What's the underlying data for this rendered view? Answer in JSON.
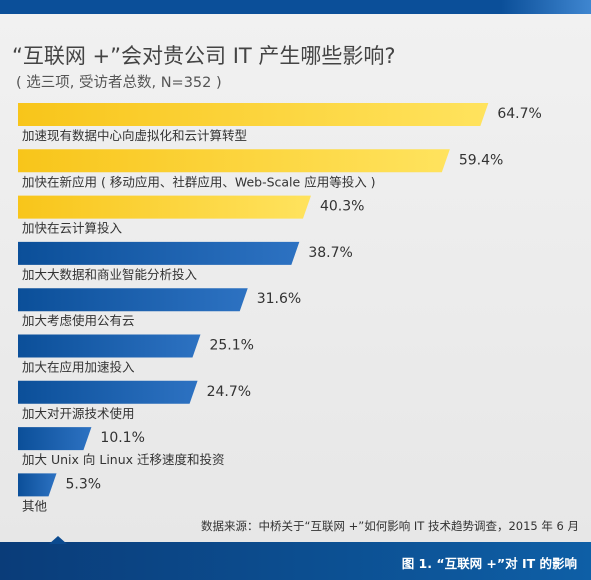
{
  "chart_data": {
    "type": "bar",
    "orientation": "horizontal",
    "title": "“互联网 +”会对贵公司 IT 产生哪些影响?",
    "subtitle": "( 选三项, 受访者总数, N=352 )",
    "categories": [
      "加速现有数据中心向虚拟化和云计算转型",
      "加快在新应用 ( 移动应用、社群应用、Web-Scale 应用等投入 )",
      "加快在云计算投入",
      "加大大数据和商业智能分析投入",
      "加大考虑使用公有云",
      "加大在应用加速投入",
      "加大对开源技术使用",
      "加大 Unix 向 Linux 迁移速度和投资",
      "其他"
    ],
    "values": [
      64.7,
      59.4,
      40.3,
      38.7,
      31.6,
      25.1,
      24.7,
      10.1,
      5.3
    ],
    "value_labels": [
      "64.7%",
      "59.4%",
      "40.3%",
      "38.7%",
      "31.6%",
      "25.1%",
      "24.7%",
      "10.1%",
      "5.3%"
    ],
    "highlight_count": 3,
    "colors": {
      "highlight": "#f8c51a",
      "highlight_light": "#ffe35e",
      "default": "#0b4f99",
      "default_light": "#2d72c2"
    },
    "xlim": [
      0,
      70
    ],
    "grid": false,
    "legend": "none"
  },
  "source": "数据来源：中桥关于“互联网 +”如何影响 IT 技术趋势调查，2015 年 6 月",
  "caption": "图 1. “互联网 +”对 IT 的影响"
}
